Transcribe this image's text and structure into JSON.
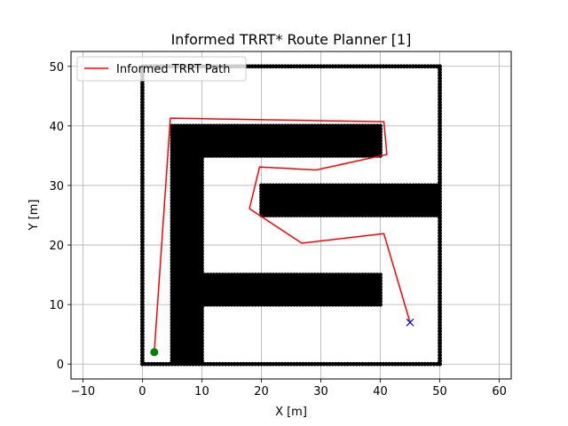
{
  "chart_data": {
    "type": "line",
    "title": "Informed TRRT* Route Planner [1]",
    "xlabel": "X [m]",
    "ylabel": "Y [m]",
    "xlim": [
      -12,
      62
    ],
    "ylim": [
      -2.5,
      52.5
    ],
    "xticks": [
      -10,
      0,
      10,
      20,
      30,
      40,
      50,
      60
    ],
    "yticks": [
      0,
      10,
      20,
      30,
      40,
      50
    ],
    "xtick_labels": [
      "−10",
      "0",
      "10",
      "20",
      "30",
      "40",
      "50",
      "60"
    ],
    "ytick_labels": [
      "0",
      "10",
      "20",
      "30",
      "40",
      "50"
    ],
    "grid": true,
    "legend": {
      "placement": "top-left",
      "entries": [
        "Informed TRRT Path"
      ]
    },
    "series": [
      {
        "name": "Informed TRRT Path",
        "color": "#ff0000",
        "x": [
          2,
          4.7,
          40.6,
          41.1,
          29.2,
          19.7,
          18.0,
          26.8,
          40.6,
          45.0
        ],
        "y": [
          2,
          41.3,
          40.7,
          35.2,
          32.6,
          33.1,
          26.1,
          20.3,
          21.9,
          7.0
        ]
      }
    ],
    "obstacles": {
      "color": "#000000",
      "spacing": 0.5,
      "segments": [
        {
          "x": [
            0,
            50
          ],
          "y": [
            0,
            0
          ]
        },
        {
          "x": [
            0,
            50
          ],
          "y": [
            50,
            50
          ]
        },
        {
          "x": [
            0,
            0
          ],
          "y": [
            0,
            50
          ]
        },
        {
          "x": [
            50,
            50
          ],
          "y": [
            0,
            50
          ]
        }
      ],
      "blocks": [
        {
          "x": [
            5,
            10
          ],
          "y": [
            0,
            40
          ]
        },
        {
          "x": [
            10,
            40
          ],
          "y": [
            35,
            40
          ]
        },
        {
          "x": [
            20,
            50
          ],
          "y": [
            25,
            30
          ]
        },
        {
          "x": [
            10,
            40
          ],
          "y": [
            10,
            15
          ]
        }
      ]
    },
    "start": {
      "x": 2,
      "y": 2,
      "color": "#008000"
    },
    "goal": {
      "x": 45,
      "y": 7,
      "color": "#0000ff"
    }
  }
}
